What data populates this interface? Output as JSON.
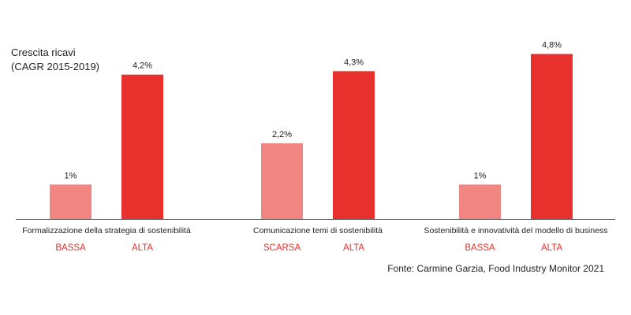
{
  "chart_data": {
    "type": "bar",
    "ylabel_lines": [
      "Crescita ricavi",
      "(CAGR 2015-2019)"
    ],
    "groups": [
      {
        "label": "Formalizzazione della strategia di sostenibilità",
        "bars": [
          {
            "category": "BASSA",
            "value": 1.0,
            "label": "1%"
          },
          {
            "category": "ALTA",
            "value": 4.2,
            "label": "4,2%"
          }
        ]
      },
      {
        "label": "Comunicazione temi di sostenibilità",
        "bars": [
          {
            "category": "SCARSA",
            "value": 2.2,
            "label": "2,2%"
          },
          {
            "category": "ALTA",
            "value": 4.3,
            "label": "4,3%"
          }
        ]
      },
      {
        "label": "Sostenibilità e innovatività del modello di business",
        "bars": [
          {
            "category": "BASSA",
            "value": 1.0,
            "label": "1%"
          },
          {
            "category": "ALTA",
            "value": 4.8,
            "label": "4,8%"
          }
        ]
      }
    ],
    "ylim": [
      0,
      5.5
    ],
    "grid": false,
    "legend": "none",
    "source": "Fonte: Carmine Garzia, Food Industry Monitor 2021"
  },
  "colors": {
    "low": "#f08581",
    "high": "#e8312c",
    "category_text": "#e8312c",
    "axis": "#444444"
  }
}
